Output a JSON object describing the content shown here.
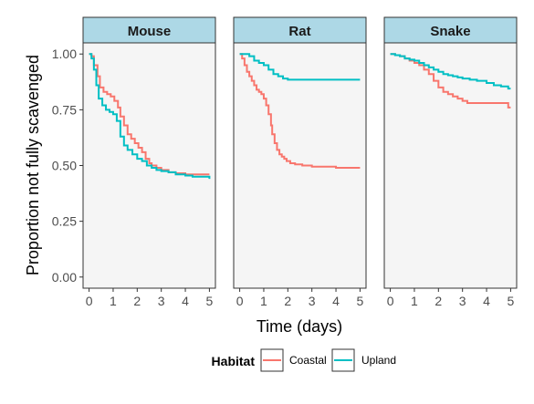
{
  "chart_data": {
    "type": "line",
    "step": true,
    "xlabel": "Time (days)",
    "ylabel": "Proportion not fully scavenged",
    "xlim": [
      -0.25,
      5.25
    ],
    "ylim": [
      -0.05,
      1.05
    ],
    "x_ticks": [
      "0",
      "1",
      "2",
      "3",
      "4",
      "5"
    ],
    "y_ticks": [
      "0.00",
      "0.25",
      "0.50",
      "0.75",
      "1.00"
    ],
    "grid": false,
    "panel_background": "#f5f5f5",
    "strip_background": "#add8e6",
    "legend": {
      "position": "bottom",
      "title": "Habitat",
      "entries": [
        {
          "name": "Coastal",
          "color": "#f8766d"
        },
        {
          "name": "Upland",
          "color": "#00bfc4"
        }
      ]
    },
    "panels": [
      {
        "label": "Mouse",
        "series": [
          {
            "name": "Coastal",
            "color": "#f8766d",
            "x": [
              0,
              0.1,
              0.2,
              0.35,
              0.45,
              0.6,
              0.75,
              0.9,
              1.05,
              1.2,
              1.3,
              1.45,
              1.6,
              1.75,
              1.9,
              2.05,
              2.2,
              2.35,
              2.5,
              2.6,
              2.8,
              3.0,
              3.3,
              3.6,
              4.0,
              5.0
            ],
            "y": [
              1.0,
              0.99,
              0.95,
              0.9,
              0.85,
              0.83,
              0.82,
              0.81,
              0.79,
              0.76,
              0.72,
              0.68,
              0.64,
              0.62,
              0.6,
              0.58,
              0.56,
              0.53,
              0.51,
              0.5,
              0.49,
              0.48,
              0.47,
              0.465,
              0.46,
              0.46
            ]
          },
          {
            "name": "Upland",
            "color": "#00bfc4",
            "x": [
              0,
              0.1,
              0.2,
              0.3,
              0.4,
              0.55,
              0.7,
              0.85,
              1.0,
              1.15,
              1.3,
              1.45,
              1.6,
              1.8,
              2.0,
              2.2,
              2.4,
              2.6,
              2.8,
              3.0,
              3.3,
              3.6,
              4.0,
              4.3,
              4.6,
              4.9,
              5.0
            ],
            "y": [
              1.0,
              0.98,
              0.93,
              0.86,
              0.8,
              0.77,
              0.75,
              0.74,
              0.73,
              0.7,
              0.63,
              0.59,
              0.57,
              0.55,
              0.53,
              0.52,
              0.5,
              0.49,
              0.48,
              0.475,
              0.47,
              0.46,
              0.455,
              0.45,
              0.45,
              0.45,
              0.44
            ]
          }
        ]
      },
      {
        "label": "Rat",
        "series": [
          {
            "name": "Coastal",
            "color": "#f8766d",
            "x": [
              0,
              0.1,
              0.2,
              0.3,
              0.4,
              0.5,
              0.6,
              0.7,
              0.8,
              0.9,
              1.0,
              1.1,
              1.2,
              1.3,
              1.35,
              1.45,
              1.55,
              1.65,
              1.75,
              1.85,
              1.95,
              2.1,
              2.3,
              2.6,
              3.0,
              3.5,
              4.0,
              5.0
            ],
            "y": [
              1.0,
              0.98,
              0.95,
              0.92,
              0.9,
              0.88,
              0.86,
              0.84,
              0.83,
              0.82,
              0.8,
              0.77,
              0.73,
              0.68,
              0.64,
              0.6,
              0.57,
              0.55,
              0.54,
              0.53,
              0.52,
              0.51,
              0.505,
              0.5,
              0.495,
              0.495,
              0.49,
              0.49
            ]
          },
          {
            "name": "Upland",
            "color": "#00bfc4",
            "x": [
              0,
              0.2,
              0.4,
              0.6,
              0.8,
              1.0,
              1.2,
              1.4,
              1.6,
              1.8,
              2.0,
              2.5,
              3.0,
              4.0,
              5.0
            ],
            "y": [
              1.0,
              1.0,
              0.99,
              0.97,
              0.96,
              0.95,
              0.93,
              0.91,
              0.9,
              0.89,
              0.885,
              0.885,
              0.885,
              0.885,
              0.885
            ]
          }
        ]
      },
      {
        "label": "Snake",
        "series": [
          {
            "name": "Coastal",
            "color": "#f8766d",
            "x": [
              0,
              0.2,
              0.4,
              0.6,
              0.8,
              1.0,
              1.2,
              1.4,
              1.6,
              1.8,
              2.0,
              2.2,
              2.4,
              2.6,
              2.8,
              3.0,
              3.2,
              3.5,
              4.0,
              4.5,
              4.9,
              5.0
            ],
            "y": [
              1.0,
              0.995,
              0.99,
              0.98,
              0.97,
              0.96,
              0.95,
              0.93,
              0.91,
              0.88,
              0.85,
              0.83,
              0.82,
              0.81,
              0.8,
              0.79,
              0.78,
              0.78,
              0.78,
              0.78,
              0.76,
              0.76
            ]
          },
          {
            "name": "Upland",
            "color": "#00bfc4",
            "x": [
              0,
              0.2,
              0.4,
              0.6,
              0.8,
              1.0,
              1.2,
              1.4,
              1.6,
              1.8,
              2.0,
              2.2,
              2.4,
              2.6,
              2.8,
              3.0,
              3.3,
              3.6,
              4.0,
              4.3,
              4.6,
              4.9,
              5.0
            ],
            "y": [
              1.0,
              0.995,
              0.99,
              0.98,
              0.975,
              0.97,
              0.96,
              0.95,
              0.94,
              0.93,
              0.92,
              0.91,
              0.905,
              0.9,
              0.895,
              0.89,
              0.885,
              0.88,
              0.87,
              0.86,
              0.855,
              0.845,
              0.845
            ]
          }
        ]
      }
    ]
  }
}
